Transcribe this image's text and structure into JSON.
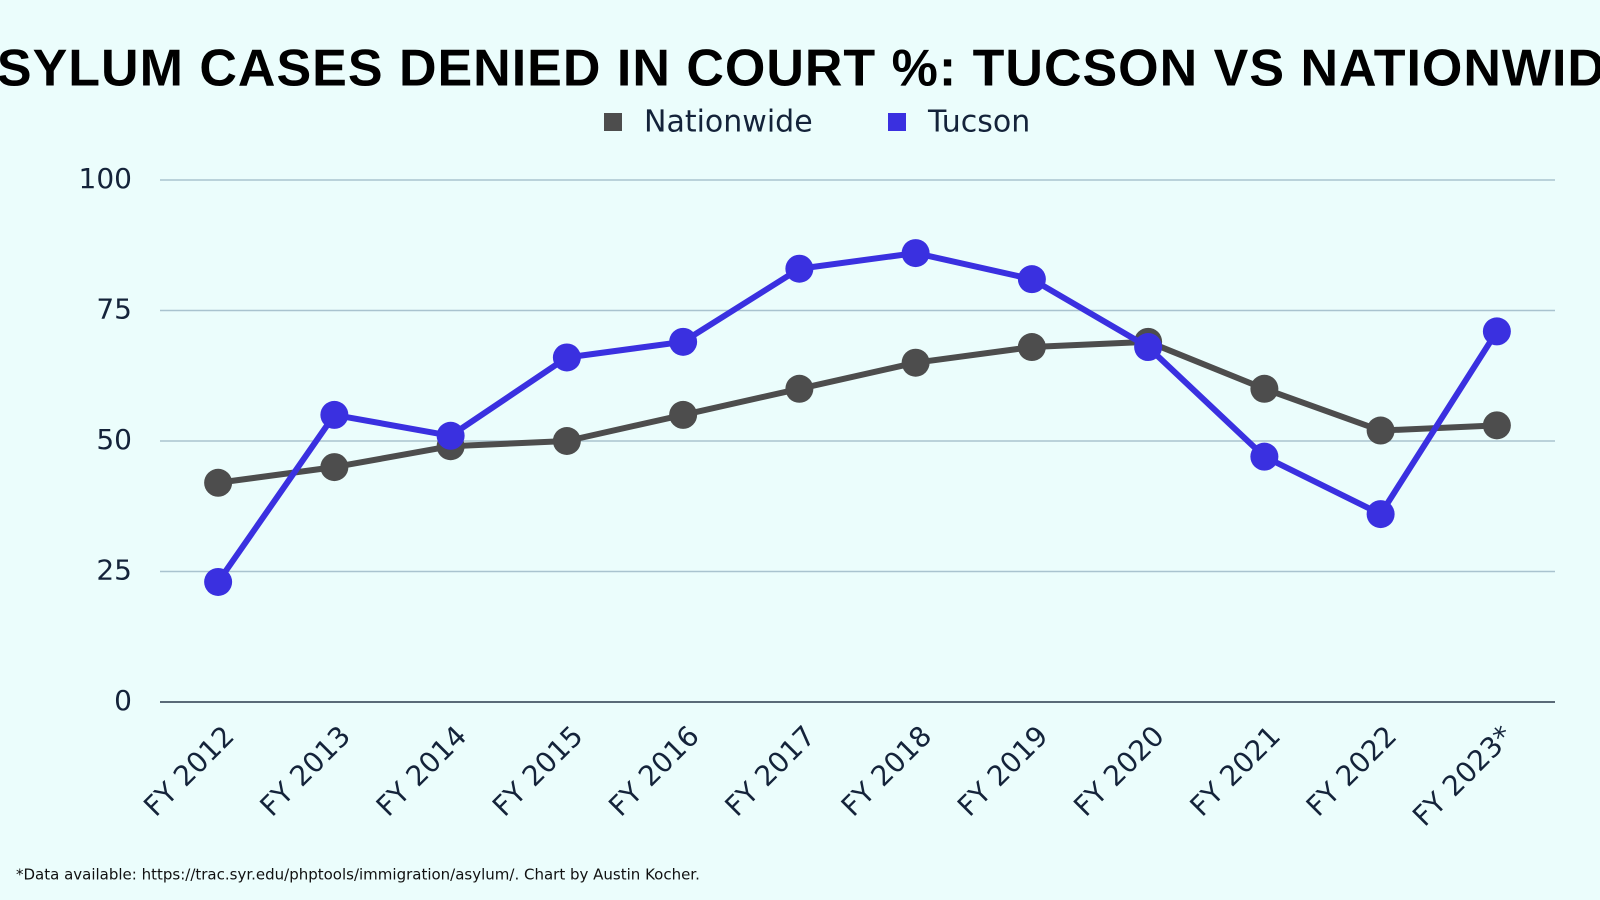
{
  "chart_data": {
    "type": "line",
    "title": "ASYLUM CASES DENIED IN COURT %: TUCSON VS NATIONWIDE",
    "footnote": "*Data available: https://trac.syr.edu/phptools/immigration/asylum/. Chart by Austin Kocher.",
    "categories": [
      "FY 2012",
      "FY 2013",
      "FY 2014",
      "FY 2015",
      "FY 2016",
      "FY 2017",
      "FY 2018",
      "FY 2019",
      "FY 2020",
      "FY 2021",
      "FY 2022",
      "FY 2023*"
    ],
    "series": [
      {
        "name": "Nationwide",
        "color": "#4d4d4d",
        "values": [
          42,
          45,
          49,
          50,
          55,
          60,
          65,
          68,
          69,
          60,
          52,
          53
        ]
      },
      {
        "name": "Tucson",
        "color": "#3a30e0",
        "values": [
          23,
          55,
          51,
          66,
          69,
          83,
          86,
          81,
          68,
          47,
          36,
          71
        ]
      }
    ],
    "ylim": [
      0,
      100
    ],
    "yticks": [
      0,
      25,
      50,
      75,
      100
    ],
    "grid": true
  }
}
